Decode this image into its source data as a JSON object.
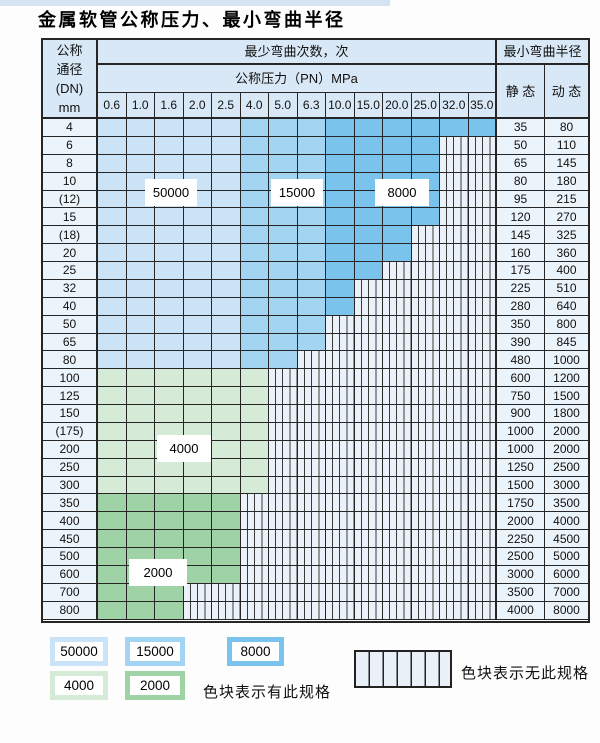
{
  "title": "金属软管公称压力、最小弯曲半径",
  "table": {
    "corner_header": [
      "公称",
      "通径",
      "(DN)",
      "mm"
    ],
    "bend_count_header": "最少弯曲次数，次",
    "radius_header": "最小弯曲半径",
    "pressure_header": "公称压力（PN）MPa",
    "static_header": "静 态",
    "dynamic_header": "动 态",
    "pressure_columns": [
      "0.6",
      "1.0",
      "1.6",
      "2.0",
      "2.5",
      "4.0",
      "5.0",
      "6.3",
      "10.0",
      "15.0",
      "20.0",
      "25.0",
      "32.0",
      "35.0"
    ],
    "blue_shading": {
      "light_cols": 5,
      "medium_cols": 8
    },
    "rows": [
      {
        "dn": "4",
        "static": "35",
        "dynamic": "80",
        "colored": 14,
        "zone": "blue"
      },
      {
        "dn": "6",
        "static": "50",
        "dynamic": "110",
        "colored": 12,
        "zone": "blue"
      },
      {
        "dn": "8",
        "static": "65",
        "dynamic": "145",
        "colored": 12,
        "zone": "blue"
      },
      {
        "dn": "10",
        "static": "80",
        "dynamic": "180",
        "colored": 12,
        "zone": "blue"
      },
      {
        "dn": "(12)",
        "static": "95",
        "dynamic": "215",
        "colored": 12,
        "zone": "blue"
      },
      {
        "dn": "15",
        "static": "120",
        "dynamic": "270",
        "colored": 12,
        "zone": "blue"
      },
      {
        "dn": "(18)",
        "static": "145",
        "dynamic": "325",
        "colored": 11,
        "zone": "blue"
      },
      {
        "dn": "20",
        "static": "160",
        "dynamic": "360",
        "colored": 11,
        "zone": "blue"
      },
      {
        "dn": "25",
        "static": "175",
        "dynamic": "400",
        "colored": 10,
        "zone": "blue"
      },
      {
        "dn": "32",
        "static": "225",
        "dynamic": "510",
        "colored": 9,
        "zone": "blue"
      },
      {
        "dn": "40",
        "static": "280",
        "dynamic": "640",
        "colored": 9,
        "zone": "blue"
      },
      {
        "dn": "50",
        "static": "350",
        "dynamic": "800",
        "colored": 8,
        "zone": "blue"
      },
      {
        "dn": "65",
        "static": "390",
        "dynamic": "845",
        "colored": 8,
        "zone": "blue"
      },
      {
        "dn": "80",
        "static": "480",
        "dynamic": "1000",
        "colored": 7,
        "zone": "blue"
      },
      {
        "dn": "100",
        "static": "600",
        "dynamic": "1200",
        "colored": 6,
        "zone": "green4000"
      },
      {
        "dn": "125",
        "static": "750",
        "dynamic": "1500",
        "colored": 6,
        "zone": "green4000"
      },
      {
        "dn": "150",
        "static": "900",
        "dynamic": "1800",
        "colored": 6,
        "zone": "green4000"
      },
      {
        "dn": "(175)",
        "static": "1000",
        "dynamic": "2000",
        "colored": 6,
        "zone": "green4000"
      },
      {
        "dn": "200",
        "static": "1000",
        "dynamic": "2000",
        "colored": 6,
        "zone": "green4000"
      },
      {
        "dn": "250",
        "static": "1250",
        "dynamic": "2500",
        "colored": 6,
        "zone": "green4000"
      },
      {
        "dn": "300",
        "static": "1500",
        "dynamic": "3000",
        "colored": 6,
        "zone": "green4000"
      },
      {
        "dn": "350",
        "static": "1750",
        "dynamic": "3500",
        "colored": 5,
        "zone": "green2000"
      },
      {
        "dn": "400",
        "static": "2000",
        "dynamic": "4000",
        "colored": 5,
        "zone": "green2000"
      },
      {
        "dn": "450",
        "static": "2250",
        "dynamic": "4500",
        "colored": 5,
        "zone": "green2000"
      },
      {
        "dn": "500",
        "static": "2500",
        "dynamic": "5000",
        "colored": 5,
        "zone": "green2000"
      },
      {
        "dn": "600",
        "static": "3000",
        "dynamic": "6000",
        "colored": 5,
        "zone": "green2000"
      },
      {
        "dn": "700",
        "static": "3500",
        "dynamic": "7000",
        "colored": 3,
        "zone": "green2000"
      },
      {
        "dn": "800",
        "static": "4000",
        "dynamic": "8000",
        "colored": 3,
        "zone": "green2000"
      }
    ]
  },
  "overlay_labels": {
    "l50000": "50000",
    "l15000": "15000",
    "l8000": "8000",
    "l4000": "4000",
    "l2000": "2000"
  },
  "legend": {
    "items": [
      {
        "value": "50000",
        "color_key": "light_blue_50000"
      },
      {
        "value": "15000",
        "color_key": "medium_blue_15000"
      },
      {
        "value": "8000",
        "color_key": "dark_blue_8000"
      },
      {
        "value": "4000",
        "color_key": "light_green_4000"
      },
      {
        "value": "2000",
        "color_key": "medium_green_2000"
      }
    ],
    "has_spec_text": "色块表示有此规格",
    "no_spec_text": "色块表示无此规格"
  },
  "colors": {
    "light_blue_50000": "#cbe3f6",
    "medium_blue_15000": "#a3d4f1",
    "dark_blue_8000": "#79c3ec",
    "light_green_4000": "#d5ead7",
    "medium_green_2000": "#9fd3a6",
    "hatch_bg": "#eaf1f8",
    "hatch_line": "#3a3a3a",
    "header_bg": "#d8e8f6",
    "label_col_bg": "#ecf4fb",
    "border": "#262626"
  }
}
